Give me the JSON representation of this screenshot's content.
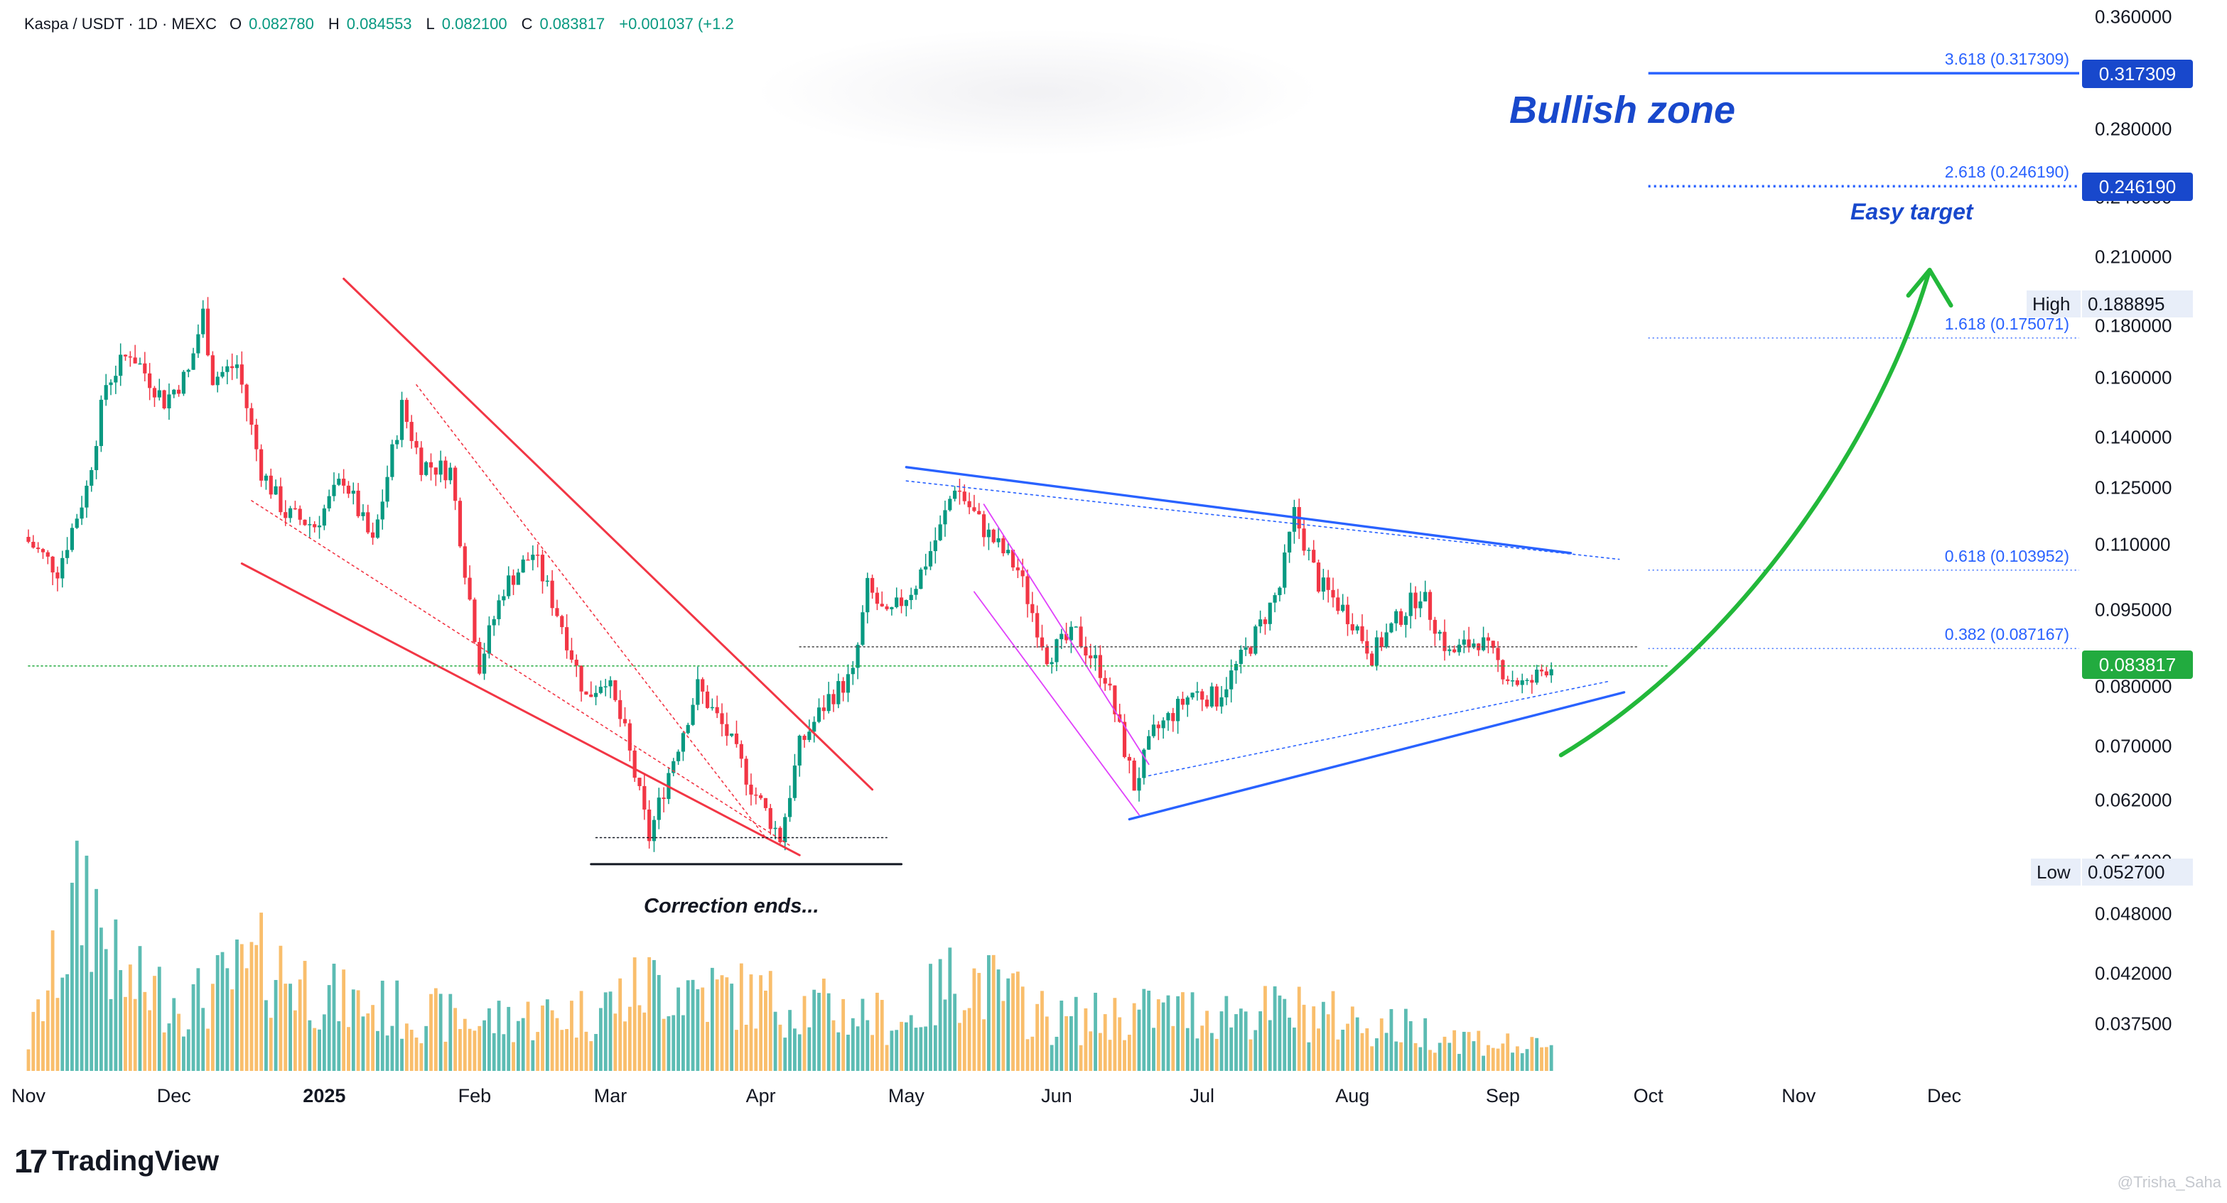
{
  "header": {
    "symbol": "Kaspa / USDT · 1D · MEXC",
    "open_label": "O",
    "open": "0.082780",
    "high_label": "H",
    "high": "0.084553",
    "low_label": "L",
    "low": "0.082100",
    "close_label": "C",
    "close": "0.083817",
    "change": "+0.001037 (+1.2"
  },
  "colors": {
    "up": "#089981",
    "down": "#f23645",
    "vol_up": "#26a69a",
    "vol_down": "#f7a83b",
    "fib_blue": "#2962ff",
    "trend_blue": "#2962ff",
    "red_channel": "#f23645",
    "arrow_green": "#22b83a",
    "last_price": "#22ab3f",
    "fib_tag": "#1848cc"
  },
  "annotations": {
    "bullish_zone": "Bullish zone",
    "easy_target": "Easy target",
    "correction_ends": "Correction ends..."
  },
  "price_tags": {
    "fib_3618": "0.317309",
    "fib_2618": "0.246190",
    "high_label": "High",
    "high_value": "0.188895",
    "last": "0.083817",
    "low_label": "Low",
    "low_value": "0.052700"
  },
  "brand": {
    "logo_mark": "17",
    "name": "TradingView",
    "watermark": "@Trisha_Saha"
  },
  "chart_data": {
    "type": "candlestick",
    "title": "",
    "y_scale": "log",
    "ylim": [
      0.034,
      0.37
    ],
    "xlim": [
      "2024-11-01",
      "2025-12-31"
    ],
    "y_ticks": [
      "0.360000",
      "0.280000",
      "0.240000",
      "0.210000",
      "0.180000",
      "0.160000",
      "0.140000",
      "0.125000",
      "0.110000",
      "0.095000",
      "0.080000",
      "0.070000",
      "0.062000",
      "0.054000",
      "0.048000",
      "0.042000",
      "0.037500"
    ],
    "y_tick_values": [
      0.36,
      0.28,
      0.24,
      0.21,
      0.18,
      0.16,
      0.14,
      0.125,
      0.11,
      0.095,
      0.08,
      0.07,
      0.062,
      0.054,
      0.048,
      0.042,
      0.0375
    ],
    "x_ticks": [
      {
        "label": "Nov",
        "date": "2024-11-01"
      },
      {
        "label": "Dec",
        "date": "2024-12-01"
      },
      {
        "label": "2025",
        "date": "2025-01-01",
        "bold": true
      },
      {
        "label": "Feb",
        "date": "2025-02-01"
      },
      {
        "label": "Mar",
        "date": "2025-03-01"
      },
      {
        "label": "Apr",
        "date": "2025-04-01"
      },
      {
        "label": "May",
        "date": "2025-05-01"
      },
      {
        "label": "Jun",
        "date": "2025-06-01"
      },
      {
        "label": "Jul",
        "date": "2025-07-01"
      },
      {
        "label": "Aug",
        "date": "2025-08-01"
      },
      {
        "label": "Sep",
        "date": "2025-09-01"
      },
      {
        "label": "Oct",
        "date": "2025-10-01"
      },
      {
        "label": "Nov",
        "date": "2025-11-01"
      },
      {
        "label": "Dec",
        "date": "2025-12-01"
      }
    ],
    "price_path": [
      [
        "2024-11-01",
        0.112
      ],
      [
        "2024-11-08",
        0.104
      ],
      [
        "2024-11-14",
        0.125
      ],
      [
        "2024-11-18",
        0.158
      ],
      [
        "2024-11-23",
        0.17
      ],
      [
        "2024-11-30",
        0.152
      ],
      [
        "2024-12-05",
        0.162
      ],
      [
        "2024-12-08",
        0.185
      ],
      [
        "2024-12-10",
        0.16
      ],
      [
        "2024-12-15",
        0.165
      ],
      [
        "2024-12-20",
        0.13
      ],
      [
        "2024-12-25",
        0.118
      ],
      [
        "2024-12-31",
        0.115
      ],
      [
        "2025-01-06",
        0.128
      ],
      [
        "2025-01-12",
        0.11
      ],
      [
        "2025-01-18",
        0.15
      ],
      [
        "2025-01-22",
        0.132
      ],
      [
        "2025-01-28",
        0.13
      ],
      [
        "2025-02-03",
        0.084
      ],
      [
        "2025-02-08",
        0.1
      ],
      [
        "2025-02-14",
        0.108
      ],
      [
        "2025-02-20",
        0.092
      ],
      [
        "2025-02-25",
        0.078
      ],
      [
        "2025-03-01",
        0.082
      ],
      [
        "2025-03-05",
        0.072
      ],
      [
        "2025-03-10",
        0.057
      ],
      [
        "2025-03-14",
        0.066
      ],
      [
        "2025-03-20",
        0.08
      ],
      [
        "2025-03-26",
        0.072
      ],
      [
        "2025-03-31",
        0.064
      ],
      [
        "2025-04-06",
        0.057
      ],
      [
        "2025-04-10",
        0.07
      ],
      [
        "2025-04-16",
        0.078
      ],
      [
        "2025-04-21",
        0.082
      ],
      [
        "2025-04-24",
        0.1
      ],
      [
        "2025-04-28",
        0.093
      ],
      [
        "2025-05-04",
        0.101
      ],
      [
        "2025-05-09",
        0.114
      ],
      [
        "2025-05-12",
        0.126
      ],
      [
        "2025-05-18",
        0.114
      ],
      [
        "2025-05-25",
        0.104
      ],
      [
        "2025-05-31",
        0.086
      ],
      [
        "2025-06-06",
        0.09
      ],
      [
        "2025-06-12",
        0.082
      ],
      [
        "2025-06-18",
        0.064
      ],
      [
        "2025-06-22",
        0.072
      ],
      [
        "2025-06-30",
        0.079
      ],
      [
        "2025-07-05",
        0.078
      ],
      [
        "2025-07-12",
        0.088
      ],
      [
        "2025-07-18",
        0.1
      ],
      [
        "2025-07-21",
        0.118
      ],
      [
        "2025-07-26",
        0.101
      ],
      [
        "2025-08-02",
        0.093
      ],
      [
        "2025-08-06",
        0.086
      ],
      [
        "2025-08-12",
        0.094
      ],
      [
        "2025-08-16",
        0.099
      ],
      [
        "2025-08-22",
        0.086
      ],
      [
        "2025-08-28",
        0.089
      ],
      [
        "2025-09-03",
        0.082
      ],
      [
        "2025-09-07",
        0.08
      ],
      [
        "2025-09-11",
        0.0838
      ]
    ],
    "volume_path": [
      [
        "2024-11-01",
        0.15
      ],
      [
        "2024-11-13",
        0.95
      ],
      [
        "2024-11-20",
        0.45
      ],
      [
        "2024-12-05",
        0.35
      ],
      [
        "2024-12-20",
        0.55
      ],
      [
        "2025-01-05",
        0.35
      ],
      [
        "2025-02-01",
        0.25
      ],
      [
        "2025-02-25",
        0.3
      ],
      [
        "2025-03-10",
        0.45
      ],
      [
        "2025-04-06",
        0.35
      ],
      [
        "2025-05-01",
        0.25
      ],
      [
        "2025-05-12",
        0.5
      ],
      [
        "2025-06-01",
        0.25
      ],
      [
        "2025-06-20",
        0.3
      ],
      [
        "2025-07-21",
        0.3
      ],
      [
        "2025-09-11",
        0.1
      ]
    ],
    "fib_levels": [
      {
        "ratio": "3.618",
        "price": 0.317309,
        "label": "3.618 (0.317309)"
      },
      {
        "ratio": "2.618",
        "price": 0.24619,
        "label": "2.618 (0.246190)"
      },
      {
        "ratio": "1.618",
        "price": 0.175071,
        "label": "1.618 (0.175071)"
      },
      {
        "ratio": "0.618",
        "price": 0.103952,
        "label": "0.618 (0.103952)"
      },
      {
        "ratio": "0.382",
        "price": 0.087167,
        "label": "0.382 (0.087167)"
      }
    ],
    "fib_start_date": "2025-10-01",
    "last_price": 0.083817,
    "high": 0.188895,
    "low": 0.0527,
    "drawings": {
      "red_channel_upper": [
        [
          "2025-01-05",
          0.2
        ],
        [
          "2025-04-24",
          0.0635
        ]
      ],
      "red_channel_lower": [
        [
          "2024-12-15",
          0.1055
        ],
        [
          "2025-04-09",
          0.0548
        ]
      ],
      "red_dotted_inner": [
        [
          "2025-01-20",
          0.1576
        ],
        [
          "2025-04-02",
          0.057
        ]
      ],
      "red_dotted_inner2": [
        [
          "2024-12-17",
          0.1215
        ],
        [
          "2025-04-07",
          0.056
        ]
      ],
      "support_line": [
        [
          "2025-02-25",
          0.0537
        ],
        [
          "2025-04-30",
          0.0537
        ]
      ],
      "support_dotted": [
        [
          "2025-02-26",
          0.057
        ],
        [
          "2025-04-27",
          0.057
        ]
      ],
      "triangle_upper": [
        [
          "2025-05-01",
          0.131
        ],
        [
          "2025-09-15",
          0.108
        ]
      ],
      "triangle_lower": [
        [
          "2025-06-16",
          0.0594
        ],
        [
          "2025-09-26",
          0.079
        ]
      ],
      "triangle_upper_dotted": [
        [
          "2025-05-01",
          0.127
        ],
        [
          "2025-09-25",
          0.1065
        ]
      ],
      "triangle_lower_dotted": [
        [
          "2025-06-20",
          0.0655
        ],
        [
          "2025-09-23",
          0.081
        ]
      ],
      "pink_channel_upper": [
        [
          "2025-05-17",
          0.1205
        ],
        [
          "2025-06-20",
          0.0672
        ]
      ],
      "pink_channel_lower": [
        [
          "2025-05-15",
          0.099
        ],
        [
          "2025-06-18",
          0.06
        ]
      ],
      "grey_level": [
        [
          "2025-04-09",
          0.0875
        ],
        [
          "2025-09-29",
          0.0875
        ]
      ],
      "last_price_line": [
        [
          "2024-11-01",
          0.083817
        ],
        [
          "2025-10-05",
          0.083817
        ]
      ],
      "green_arrow": [
        [
          "2025-09-13",
          0.0686
        ],
        [
          "2025-10-20",
          0.0875
        ],
        [
          "2025-11-18",
          0.14
        ],
        [
          "2025-11-28",
          0.204
        ]
      ]
    }
  }
}
